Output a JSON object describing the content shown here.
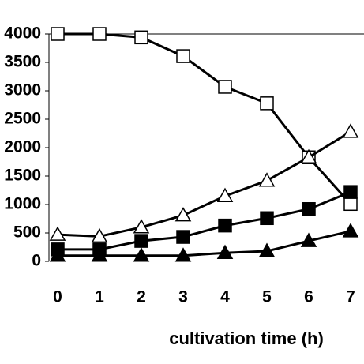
{
  "chart_data": {
    "type": "line",
    "x_label": "cultivation time (h)",
    "x": [
      0,
      1,
      2,
      3,
      4,
      5,
      6,
      7
    ],
    "xlim": [
      -0.15,
      7.32
    ],
    "xticks": [
      0,
      1,
      2,
      3,
      4,
      5,
      6,
      7
    ],
    "ylim": [
      0,
      4000
    ],
    "yticks": [
      0,
      500,
      1000,
      1500,
      2000,
      2500,
      3000,
      3500,
      4000
    ],
    "grid": false,
    "series": [
      {
        "color": "#000000",
        "marker": "square",
        "filled": false,
        "values": [
          4000,
          4000,
          3940,
          3610,
          3070,
          2780,
          1830,
          1010
        ]
      },
      {
        "color": "#000000",
        "marker": "triangle",
        "filled": false,
        "values": [
          470,
          440,
          600,
          810,
          1150,
          1420,
          1830,
          2280
        ]
      },
      {
        "color": "#000000",
        "marker": "square",
        "filled": true,
        "values": [
          210,
          210,
          360,
          430,
          630,
          760,
          920,
          1220
        ]
      },
      {
        "color": "#000000",
        "marker": "triangle",
        "filled": true,
        "values": [
          100,
          100,
          100,
          100,
          150,
          180,
          360,
          530
        ]
      }
    ]
  }
}
